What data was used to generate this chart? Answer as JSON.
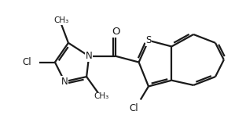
{
  "bg": "#ffffff",
  "lc": "#1a1a1a",
  "lw": 1.6,
  "fs": 8.5,
  "xlim": [
    -0.5,
    9.5
  ],
  "ylim": [
    0.5,
    5.5
  ]
}
